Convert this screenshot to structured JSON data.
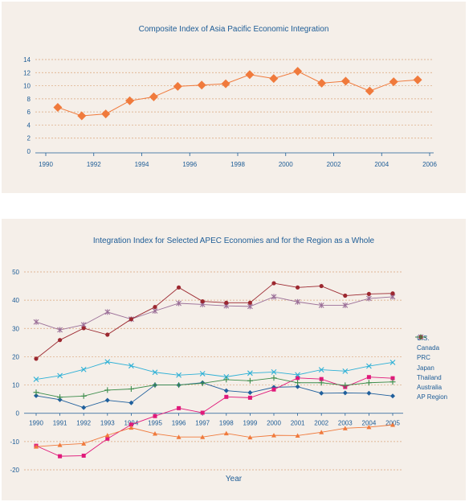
{
  "chart_data": [
    {
      "type": "line",
      "title": "Composite Index of Asia Pacific Economic Integration",
      "xlabel": "",
      "ylabel": "",
      "xlim": [
        1989.5,
        2006
      ],
      "ylim": [
        0,
        14
      ],
      "xticks": [
        1990,
        1992,
        1994,
        1996,
        1998,
        2000,
        2002,
        2004,
        2006
      ],
      "yticks": [
        0,
        2,
        4,
        6,
        8,
        10,
        12,
        14
      ],
      "grid": "horizontal dashed",
      "series": [
        {
          "color": "#f07a3c",
          "x": [
            1990.5,
            1991.5,
            1992.5,
            1993.5,
            1994.5,
            1995.5,
            1996.5,
            1997.5,
            1998.5,
            1999.5,
            2000.5,
            2001.5,
            2002.5,
            2003.5,
            2004.5,
            2005.5
          ],
          "values": [
            6.7,
            5.4,
            5.7,
            7.7,
            8.3,
            9.9,
            10.1,
            10.3,
            11.7,
            11.1,
            12.2,
            10.4,
            10.7,
            9.2,
            10.6,
            10.9
          ]
        }
      ]
    },
    {
      "type": "line",
      "title": "Integration Index for Selected APEC Economies and for the Region as a Whole",
      "xlabel": "Year",
      "ylabel": "",
      "ylim": [
        -20,
        50
      ],
      "yticks": [
        -20,
        -10,
        0,
        10,
        20,
        30,
        40,
        50
      ],
      "grid": "horizontal dashed",
      "legend": "right",
      "categories": [
        "1990",
        "1991",
        "1992",
        "1993",
        "1994",
        "1995",
        "1996",
        "1997",
        "1998",
        "1999",
        "2000",
        "2001",
        "2002",
        "2003",
        "2004",
        "2005"
      ],
      "series": [
        {
          "name": "U.S.",
          "color": "#1f5f9c",
          "marker": "diamond",
          "values": [
            6.2,
            4.8,
            2.0,
            4.6,
            3.7,
            10.0,
            10.0,
            10.8,
            8.0,
            7.3,
            9.2,
            9.4,
            7.1,
            7.2,
            7.1,
            6.1
          ]
        },
        {
          "name": "Canada",
          "color": "#e0197a",
          "marker": "square",
          "values": [
            -11.5,
            -15.2,
            -15.0,
            -9.0,
            -4.0,
            -1.0,
            1.8,
            0.2,
            5.8,
            5.5,
            8.4,
            12.5,
            12.1,
            9.3,
            12.8,
            12.4
          ]
        },
        {
          "name": "PRC",
          "color": "#f07a3c",
          "marker": "triangle",
          "values": [
            -11.8,
            -11.2,
            -10.7,
            -7.8,
            -5.1,
            -7.2,
            -8.4,
            -8.4,
            -7.1,
            -8.5,
            -7.8,
            -7.9,
            -6.7,
            -5.3,
            -4.9,
            -4.1
          ]
        },
        {
          "name": "Japan",
          "color": "#2db0d6",
          "marker": "x",
          "values": [
            12.0,
            13.3,
            15.5,
            18.2,
            16.8,
            14.5,
            13.5,
            14.0,
            12.9,
            14.2,
            14.6,
            13.6,
            15.4,
            14.9,
            16.7,
            18.0
          ]
        },
        {
          "name": "Thailand",
          "color": "#9b6f98",
          "marker": "star",
          "values": [
            32.3,
            29.5,
            31.3,
            35.8,
            33.3,
            36.2,
            38.9,
            38.5,
            38.0,
            37.8,
            41.2,
            39.4,
            38.2,
            38.2,
            40.6,
            41.2
          ]
        },
        {
          "name": "Australia",
          "color": "#9c2830",
          "marker": "circle",
          "values": [
            19.3,
            25.9,
            30.1,
            27.8,
            33.3,
            37.6,
            44.5,
            39.6,
            39.1,
            39.1,
            46.0,
            44.5,
            45.0,
            41.6,
            42.2,
            42.4
          ]
        },
        {
          "name": "AP Region",
          "color": "#3b8c4a",
          "marker": "plus",
          "values": [
            7.4,
            5.7,
            6.1,
            8.2,
            8.6,
            10.0,
            10.0,
            10.6,
            11.9,
            11.5,
            12.5,
            10.8,
            10.8,
            9.9,
            10.8,
            11.1
          ]
        }
      ]
    }
  ]
}
